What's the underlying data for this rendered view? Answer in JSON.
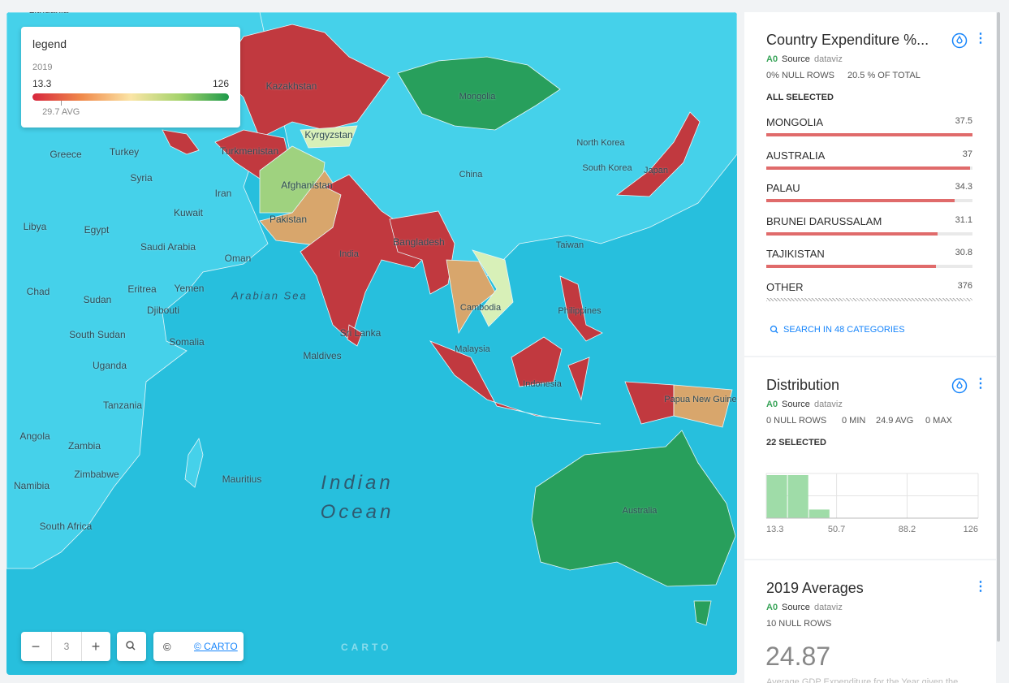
{
  "map": {
    "labels": [
      "Lithuania",
      "Kazakhstan",
      "Mongolia",
      "Kyrgyzstan",
      "Turkmenistan",
      "Greece",
      "Turkey",
      "Syria",
      "Iran",
      "Afghanistan",
      "Pakistan",
      "Kuwait",
      "China",
      "North Korea",
      "South Korea",
      "Japan",
      "Libya",
      "Egypt",
      "Saudi Arabia",
      "Oman",
      "India",
      "Bangladesh",
      "Taiwan",
      "Chad",
      "Sudan",
      "Eritrea",
      "Yemen",
      "Djibouti",
      "Philippines",
      "Cambodia",
      "Sri Lanka",
      "South Sudan",
      "Somalia",
      "Maldives",
      "Malaysia",
      "Uganda",
      "Indonesia",
      "Papua New Guinea",
      "Tanzania",
      "Angola",
      "Zambia",
      "Zimbabwe",
      "Namibia",
      "Mauritius",
      "South Africa",
      "Australia"
    ],
    "seas": [
      "Arabian Sea",
      "Indian Ocean"
    ],
    "zoom": 3,
    "copyright": "©",
    "attribution": "© CARTO",
    "watermark": "CARTO"
  },
  "legend": {
    "title": "legend",
    "subtitle": "2019",
    "min": 13.3,
    "max": 126,
    "avg": 29.7,
    "avg_label": "29.7 AVG"
  },
  "widgets": [
    {
      "type": "category",
      "title": "Country Expenditure %...",
      "source_id": "A0",
      "source_label": "Source",
      "source_name": "dataviz",
      "stats": [
        "0% NULL ROWS",
        "20.5 % OF TOTAL"
      ],
      "selection": "ALL SELECTED",
      "categories": [
        "MONGOLIA",
        "AUSTRALIA",
        "PALAU",
        "BRUNEI DARUSSALAM",
        "TAJIKISTAN"
      ],
      "values": [
        37.5,
        37,
        34.3,
        31.1,
        30.8
      ],
      "other": {
        "name": "OTHER",
        "value": 376
      },
      "color": "#e06b6b",
      "search": "SEARCH IN 48 CATEGORIES"
    },
    {
      "type": "histogram",
      "title": "Distribution",
      "source_id": "A0",
      "source_label": "Source",
      "source_name": "dataviz",
      "stats": [
        "0 NULL ROWS",
        "0 MIN",
        "24.9 AVG",
        "0 MAX"
      ],
      "selection": "22 SELECTED",
      "bins": [
        13.3,
        24.57,
        35.84,
        47.11,
        58.38,
        69.65,
        80.92,
        92.19,
        103.46,
        114.73,
        126
      ],
      "counts": [
        10,
        10,
        2,
        0,
        0,
        0,
        0,
        0,
        0,
        0
      ],
      "color": "#9fdca8",
      "xlim": [
        13.3,
        126
      ],
      "xticks": [
        13.3,
        50.7,
        88.2,
        126
      ]
    },
    {
      "type": "formula",
      "title": "2019 Averages",
      "source_id": "A0",
      "source_label": "Source",
      "source_name": "dataviz",
      "stats": [
        "10 NULL ROWS"
      ],
      "value": 24.87,
      "description": "Average GDP Expenditure for the Year given the"
    }
  ]
}
